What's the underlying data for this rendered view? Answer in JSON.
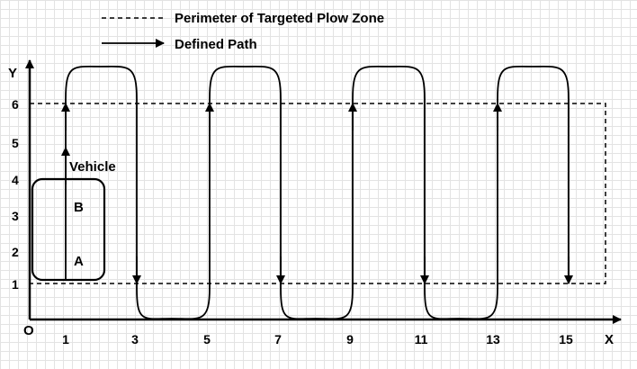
{
  "legend": {
    "perimeter_label": "Perimeter of Targeted Plow Zone",
    "path_label": "Defined Path"
  },
  "axes": {
    "x_label": "X",
    "y_label": "Y",
    "origin_label": "O",
    "x_ticks": [
      "1",
      "3",
      "5",
      "7",
      "9",
      "11",
      "13",
      "15"
    ],
    "y_ticks": [
      "1",
      "2",
      "3",
      "4",
      "5",
      "6"
    ]
  },
  "vehicle": {
    "label": "Vehicle",
    "front_label": "B",
    "rear_label": "A"
  },
  "colors": {
    "line": "#000000",
    "grid": "#e3e3e3",
    "background": "#ffffff"
  }
}
